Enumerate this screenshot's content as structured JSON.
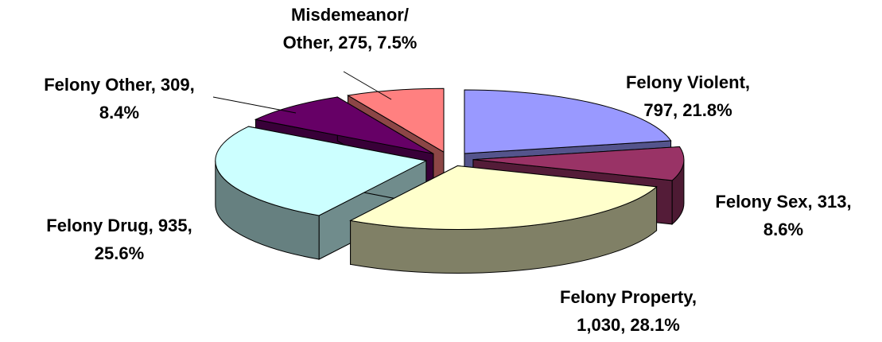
{
  "chart_data": {
    "type": "pie3d",
    "values": [
      797,
      313,
      1030,
      935,
      309,
      275
    ],
    "value_labels": [
      [
        "Felony Violent,",
        "797, 21.8%"
      ],
      [
        "Felony Sex, 313,",
        "8.6%"
      ],
      [
        "Felony Property,",
        "1,030, 28.1%"
      ],
      [
        "Felony Drug, 935,",
        "25.6%"
      ],
      [
        "Felony Other, 309,",
        "8.4%"
      ],
      [
        "Misdemeanor/",
        "Other, 275, 7.5%"
      ]
    ],
    "colors": [
      "#9999ff",
      "#993366",
      "#ffffcc",
      "#ccffff",
      "#660066",
      "#ff8080"
    ]
  }
}
